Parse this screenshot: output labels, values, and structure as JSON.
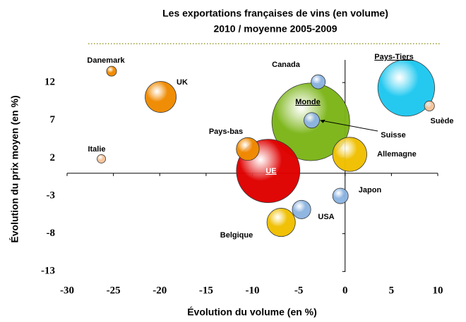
{
  "chart_data": {
    "type": "bubble",
    "title": "Les exportations françaises de vins (en volume)",
    "subtitle": "2010 / moyenne 2005-2009",
    "x_label": "Évolution du volume (en %)",
    "y_label": "Évolution du prix moyen (en %)",
    "labels": [
      "Danemark",
      "UK",
      "Italie",
      "Pays-bas",
      "UE",
      "Monde",
      "Suisse",
      "Canada",
      "Pays-Tiers",
      "Suède",
      "Allemagne",
      "Japon",
      "USA",
      "Belgique"
    ],
    "x": [
      -25.2,
      -19.9,
      -26.3,
      -10.5,
      -8.3,
      -3.7,
      -3.6,
      -2.9,
      6.6,
      9.1,
      0.5,
      -0.5,
      -4.7,
      -6.9
    ],
    "y": [
      13.5,
      10.1,
      1.9,
      3.2,
      0.3,
      6.8,
      7.0,
      12.1,
      11.3,
      8.9,
      2.5,
      -3.0,
      -4.8,
      -6.5
    ],
    "sizes": [
      4.9,
      48,
      3.6,
      26,
      200,
      300,
      12,
      10,
      160,
      5,
      58,
      12,
      17,
      40
    ],
    "colors": [
      "#f08a00",
      "#f08a00",
      "#f4c49a",
      "#f08a00",
      "#e00000",
      "#7cb518",
      "#8db4e2",
      "#8db4e2",
      "#1ec8f0",
      "#f4c49a",
      "#f0c000",
      "#8db4e2",
      "#8db4e2",
      "#f0c000"
    ],
    "xlim": [
      -30,
      10
    ],
    "xticks": [
      -30,
      -25,
      -20,
      -15,
      -10,
      -5,
      0,
      5,
      10
    ],
    "ylim": [
      -14,
      15
    ],
    "yticks": [
      12,
      7,
      2,
      -3,
      -8,
      -13
    ]
  }
}
